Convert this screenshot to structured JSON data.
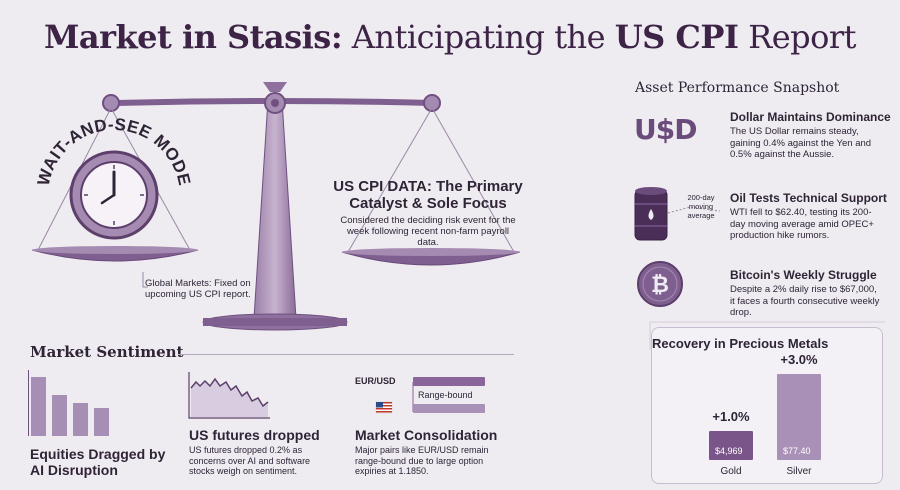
{
  "title": {
    "bold_part": "Market in Stasis:",
    "light_part": " Anticipating the ",
    "bold_part2": "US CPI",
    "light_part2": " Report"
  },
  "scale": {
    "mode_label": "WAIT-AND-SEE MODE",
    "cpi_title": "US CPI DATA: The Primary Catalyst & Sole Focus",
    "cpi_desc": "Considered the deciding risk event for the week following recent non-farm payroll data.",
    "global_note": "Global Markets: Fixed on upcoming US CPI report."
  },
  "sentiment": {
    "title": "Market Sentiment",
    "equities": {
      "label": "Equities Dragged by AI Disruption",
      "bars": [
        0.9,
        0.62,
        0.5,
        0.42
      ]
    },
    "futures": {
      "label": "US futures dropped",
      "desc": "US futures dropped 0.2% as concerns over AI and software stocks weigh on sentiment."
    },
    "consolidation": {
      "pair": "EUR/USD",
      "range_label": "Range-bound",
      "label": "Market Consolidation",
      "desc": "Major pairs like EUR/USD remain range-bound due to large option expiries at 1.1850."
    }
  },
  "assets": {
    "title": "Asset Performance Snapshot",
    "usd_logo": "U$D",
    "dollar": {
      "title": "Dollar Maintains Dominance",
      "desc": "The US Dollar remains steady, gaining 0.4% against the Yen and 0.5% against the Aussie."
    },
    "oil": {
      "ma_label": "200-day moving average",
      "title": "Oil Tests Technical Support",
      "desc": "WTI fell to $62.40, testing its 200-day moving average amid OPEC+ production hike rumors."
    },
    "bitcoin": {
      "title": "Bitcoin's Weekly Struggle",
      "desc": "Despite a 2% daily rise to $67,000, it faces a fourth consecutive weekly drop."
    }
  },
  "chart_data": {
    "type": "bar",
    "title": "Recovery in Precious Metals",
    "categories": [
      "Gold",
      "Silver"
    ],
    "pct_labels": [
      "+1.0%",
      "+3.0%"
    ],
    "value_labels": [
      "$4,969",
      "$77.40"
    ],
    "values": [
      1.0,
      3.0
    ],
    "colors": [
      "#7a5589",
      "#a990b6"
    ]
  }
}
